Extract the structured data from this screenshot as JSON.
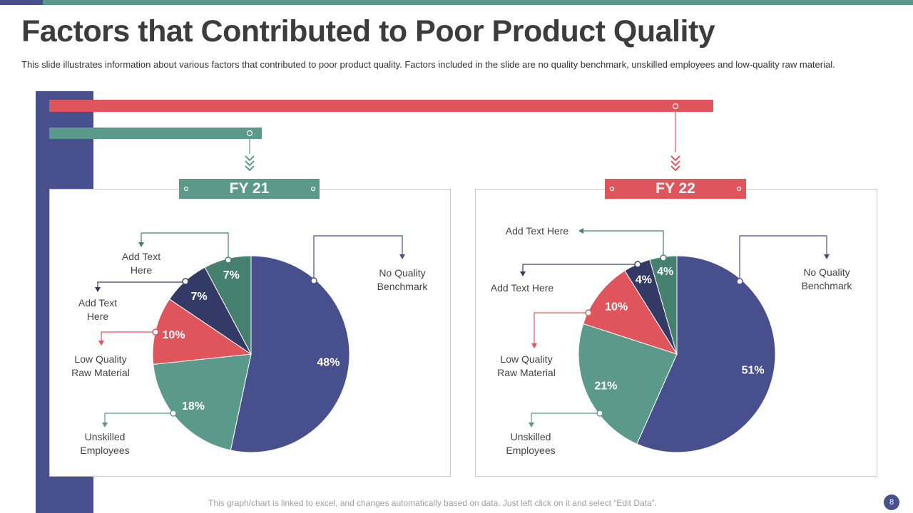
{
  "title": "Factors that Contributed to Poor Product Quality",
  "subtitle": "This slide illustrates information about various factors that contributed to poor product quality. Factors included in the slide are no quality benchmark, unskilled employees and low-quality raw material.",
  "footer": "This graph/chart is linked to excel, and changes automatically based on data. Just left click on it and select “Edit Data”.",
  "page_number": "8",
  "colors": {
    "navy": "#474f8c",
    "teal": "#5b9a8b",
    "red": "#e0555c",
    "dark_navy": "#333a66",
    "dark_teal": "#46806f"
  },
  "chart_data": [
    {
      "type": "pie",
      "title": "FY 21",
      "slices": [
        {
          "label": "No Quality Benchmark",
          "value": 48,
          "display": "48%",
          "color": "#474f8c"
        },
        {
          "label": "Unskilled Employees",
          "value": 18,
          "display": "18%",
          "color": "#5b9a8b"
        },
        {
          "label": "Low Quality Raw Material",
          "value": 10,
          "display": "10%",
          "color": "#e0555c"
        },
        {
          "label": "Add Text Here",
          "value": 7,
          "display": "7%",
          "color": "#333a66"
        },
        {
          "label": "Add Text Here",
          "value": 7,
          "display": "7%",
          "color": "#46806f"
        }
      ]
    },
    {
      "type": "pie",
      "title": "FY 22",
      "slices": [
        {
          "label": "No Quality Benchmark",
          "value": 51,
          "display": "51%",
          "color": "#474f8c"
        },
        {
          "label": "Unskilled Employees",
          "value": 21,
          "display": "21%",
          "color": "#5b9a8b"
        },
        {
          "label": "Low Quality Raw Material",
          "value": 10,
          "display": "10%",
          "color": "#e0555c"
        },
        {
          "label": "Add Text Here",
          "value": 4,
          "display": "4%",
          "color": "#333a66"
        },
        {
          "label": "Add Text Here",
          "value": 4,
          "display": "4%",
          "color": "#46806f"
        }
      ]
    }
  ]
}
